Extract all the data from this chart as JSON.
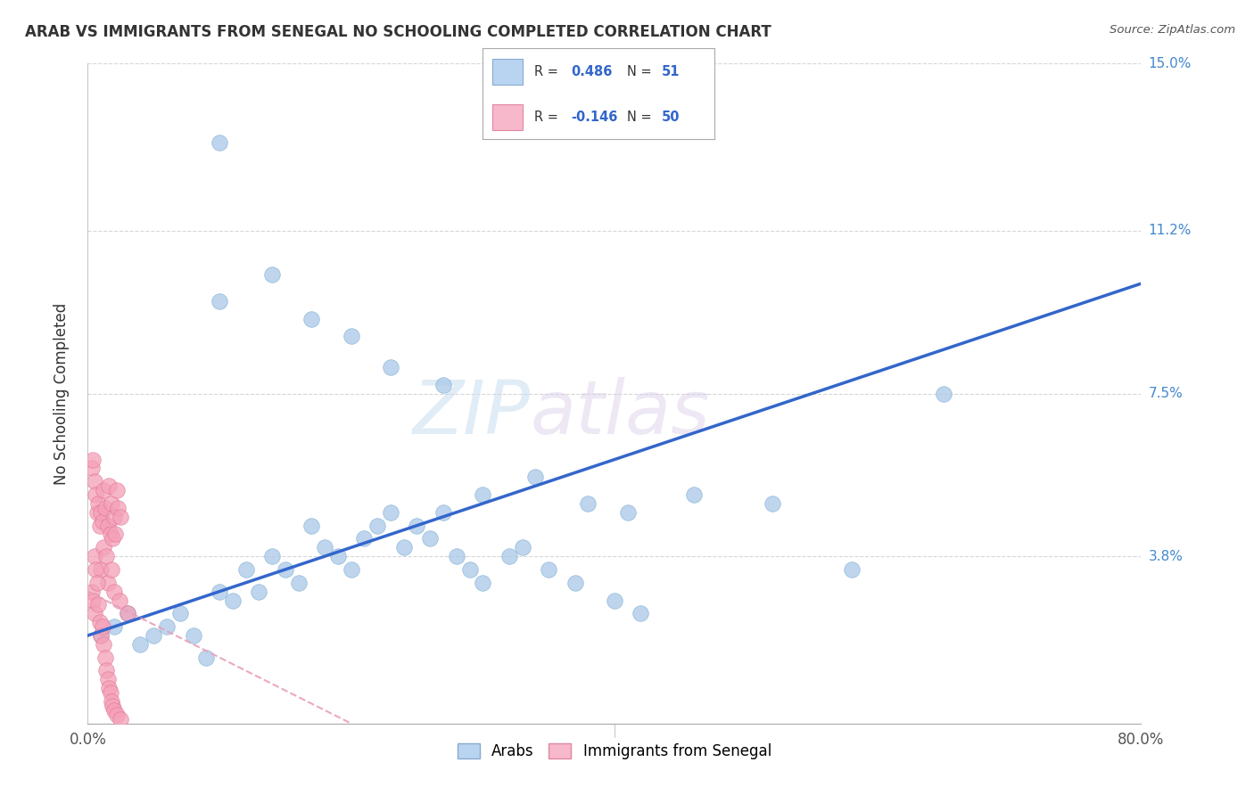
{
  "title": "ARAB VS IMMIGRANTS FROM SENEGAL NO SCHOOLING COMPLETED CORRELATION CHART",
  "source": "Source: ZipAtlas.com",
  "ylabel_label": "No Schooling Completed",
  "watermark_zip": "ZIP",
  "watermark_atlas": "atlas",
  "xlim": [
    0,
    80
  ],
  "ylim": [
    0,
    15
  ],
  "background_color": "#ffffff",
  "grid_color": "#cccccc",
  "arab_color": "#a8c8e8",
  "arab_edge_color": "#7aaad0",
  "senegal_color": "#f4a0b8",
  "senegal_edge_color": "#e07090",
  "trend_arab_color": "#3366cc",
  "trend_senegal_color": "#e8a0b8",
  "trend_arab_start_y": 2.0,
  "trend_arab_end_y": 10.0,
  "trend_sen_start_y": 3.0,
  "trend_sen_end_y": 0.0,
  "trend_sen_end_x": 20,
  "arab_R": "0.486",
  "arab_N": "51",
  "sen_R": "-0.146",
  "sen_N": "50",
  "arab_points_x": [
    10,
    10,
    14,
    17,
    20,
    23,
    27,
    30,
    34,
    38,
    41,
    46,
    52,
    58,
    65,
    1,
    2,
    3,
    4,
    5,
    6,
    7,
    8,
    9,
    10,
    11,
    12,
    13,
    14,
    15,
    16,
    17,
    18,
    19,
    20,
    21,
    22,
    23,
    24,
    25,
    26,
    27,
    28,
    29,
    30,
    32,
    33,
    35,
    37,
    40,
    42
  ],
  "arab_points_y": [
    13.2,
    9.6,
    10.2,
    9.2,
    8.8,
    8.1,
    7.7,
    5.2,
    5.6,
    5.0,
    4.8,
    5.2,
    5.0,
    3.5,
    7.5,
    2.0,
    2.2,
    2.5,
    1.8,
    2.0,
    2.2,
    2.5,
    2.0,
    1.5,
    3.0,
    2.8,
    3.5,
    3.0,
    3.8,
    3.5,
    3.2,
    4.5,
    4.0,
    3.8,
    3.5,
    4.2,
    4.5,
    4.8,
    4.0,
    4.5,
    4.2,
    4.8,
    3.8,
    3.5,
    3.2,
    3.8,
    4.0,
    3.5,
    3.2,
    2.8,
    2.5
  ],
  "senegal_points_x": [
    0.3,
    0.4,
    0.5,
    0.5,
    0.6,
    0.7,
    0.8,
    0.9,
    1.0,
    1.0,
    1.1,
    1.2,
    1.2,
    1.3,
    1.4,
    1.5,
    1.5,
    1.6,
    1.7,
    1.8,
    1.8,
    1.9,
    2.0,
    2.0,
    2.1,
    2.2,
    2.3,
    2.4,
    2.5,
    3.0,
    0.3,
    0.4,
    0.5,
    0.6,
    0.7,
    0.8,
    0.9,
    1.0,
    1.1,
    1.2,
    1.3,
    1.4,
    1.5,
    1.6,
    1.7,
    1.8,
    1.9,
    2.0,
    2.2,
    2.5
  ],
  "senegal_points_y": [
    5.8,
    6.0,
    5.5,
    3.8,
    5.2,
    4.8,
    5.0,
    4.5,
    4.8,
    3.5,
    4.6,
    5.3,
    4.0,
    4.9,
    3.8,
    4.5,
    3.2,
    5.4,
    4.3,
    5.0,
    3.5,
    4.2,
    4.7,
    3.0,
    4.3,
    5.3,
    4.9,
    2.8,
    4.7,
    2.5,
    3.0,
    2.8,
    2.5,
    3.5,
    3.2,
    2.7,
    2.3,
    2.0,
    2.2,
    1.8,
    1.5,
    1.2,
    1.0,
    0.8,
    0.7,
    0.5,
    0.4,
    0.3,
    0.2,
    0.1
  ]
}
